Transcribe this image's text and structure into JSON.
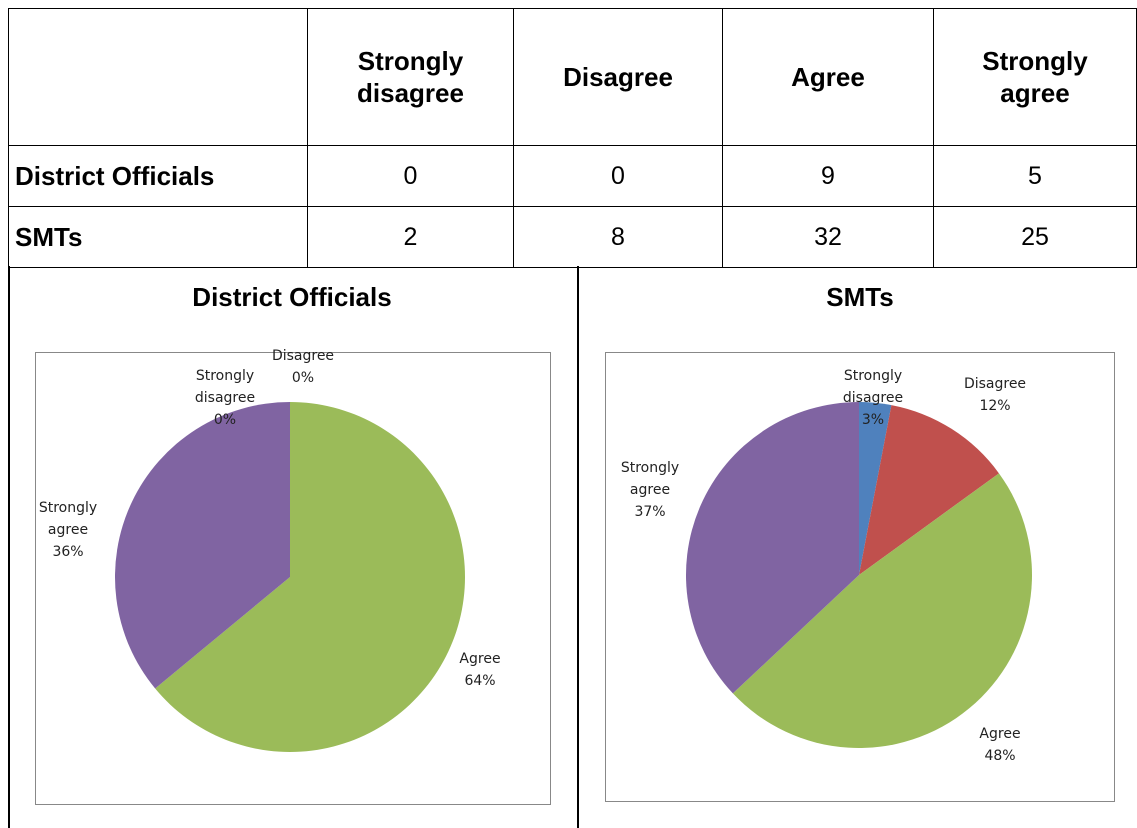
{
  "table": {
    "header": [
      "Strongly disagree",
      "Disagree",
      "Agree",
      "Strongly agree"
    ],
    "rows": [
      {
        "label": "District Officials",
        "values": [
          0,
          0,
          9,
          5
        ]
      },
      {
        "label": "SMTs",
        "values": [
          2,
          8,
          32,
          25
        ]
      }
    ]
  },
  "chart_data": [
    {
      "type": "pie",
      "title": "District Officials",
      "categories": [
        "Strongly disagree",
        "Disagree",
        "Agree",
        "Strongly agree"
      ],
      "values": [
        0,
        0,
        64,
        36
      ],
      "value_labels": [
        "0%",
        "0%",
        "64%",
        "36%"
      ],
      "colors": [
        "#4f81bd",
        "#c0504d",
        "#9bbb59",
        "#8064a2"
      ]
    },
    {
      "type": "pie",
      "title": "SMTs",
      "categories": [
        "Strongly disagree",
        "Disagree",
        "Agree",
        "Strongly agree"
      ],
      "values": [
        3,
        12,
        48,
        37
      ],
      "value_labels": [
        "3%",
        "12%",
        "48%",
        "37%"
      ],
      "colors": [
        "#4f81bd",
        "#c0504d",
        "#9bbb59",
        "#8064a2"
      ]
    }
  ]
}
